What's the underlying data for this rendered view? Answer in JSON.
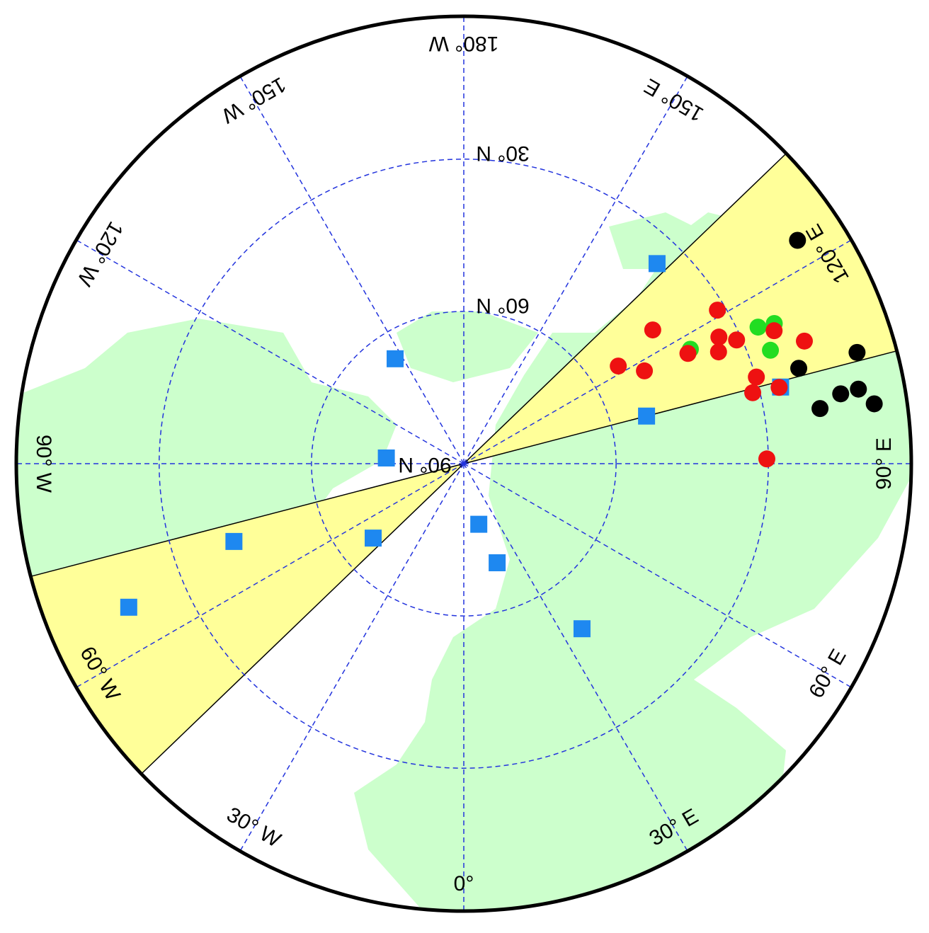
{
  "map": {
    "lat_circles": [
      {
        "value": 30,
        "label": "30° N"
      },
      {
        "value": 60,
        "label": "60° N"
      },
      {
        "value": 90,
        "label": "90° N"
      }
    ],
    "meridians": [
      {
        "value": 0,
        "label": "0°"
      },
      {
        "value": 30,
        "label": "30° E"
      },
      {
        "value": 60,
        "label": "60° E"
      },
      {
        "value": 90,
        "label": "90° E"
      },
      {
        "value": 120,
        "label": "120° E"
      },
      {
        "value": 150,
        "label": "150° E"
      },
      {
        "value": 180,
        "label": "180° W"
      },
      {
        "value": -150,
        "label": "150° W"
      },
      {
        "value": -120,
        "label": "120° W"
      },
      {
        "value": -90,
        "label": "90° W"
      },
      {
        "value": -60,
        "label": "60° W"
      },
      {
        "value": -30,
        "label": "30° W"
      }
    ],
    "sectors": [
      {
        "from": 104.6,
        "to": 133.9,
        "color": "#ffff99"
      },
      {
        "from": -75.4,
        "to": -46.1,
        "color": "#ffff99"
      }
    ],
    "markers": [
      {
        "shape": "square",
        "color": "#1e88f0",
        "lat": [
          35.2,
          65.3,
          74.7,
          52.8,
          25.8,
          42.2,
          66.9,
          18.2,
          77.7,
          69.4,
          50
        ],
        "lon": [
          136,
          -146.8,
          -94.2,
          104.6,
          103.6,
          -71.3,
          -50.6,
          -66.8,
          13.9,
          18.6,
          35.6
        ]
      },
      {
        "shape": "circle",
        "color": "#22dd22",
        "lat": [
          26.1,
          22.9,
          25.6,
          40
        ],
        "lon": [
          114.9,
          114.3,
          110.3,
          116.8
        ]
      },
      {
        "shape": "circle",
        "color": "#ee1111",
        "lat": [
          31.6,
          44.4,
          54,
          50,
          40.8,
          33.9,
          35.2,
          31,
          23.5,
          18.7,
          29.9,
          31.4,
          26.1,
          30.3
        ],
        "lon": [
          121.2,
          125.3,
          122.3,
          117.2,
          116.2,
          116.4,
          113.7,
          114.4,
          113.2,
          109.8,
          106.5,
          103.8,
          103.6,
          90.9
        ]
      },
      {
        "shape": "circle",
        "color": "#000000",
        "lat": [
          10.9,
          9.5,
          21.4,
          14.5,
          10.9,
          19,
          8.3
        ],
        "lon": [
          123.8,
          105.8,
          105.9,
          100.5,
          100.7,
          98.8,
          98.3
        ]
      }
    ]
  }
}
